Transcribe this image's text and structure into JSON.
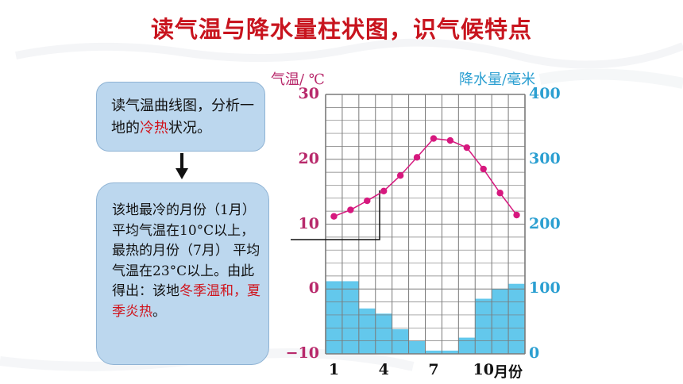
{
  "title": "读气温与降水量柱状图，识气候特点",
  "box1": {
    "pre": "读气温曲线图，分析一地的",
    "hl": "冷热",
    "post": "状况。"
  },
  "box2": {
    "pre": "该地最冷的月份（1月） 平均气温在10°C以上，最热的月份（7月） 平均气温在23°C以上。由此得出：该地",
    "hl": "冬季温和，夏季炎热",
    "post": "。"
  },
  "colors": {
    "temp": "#d6187e",
    "precip": "#63c8ec",
    "title": "#c8141e"
  },
  "chart_data": {
    "type": "bar+line",
    "left_axis_label": "气温/ ℃",
    "right_axis_label": "降水量/毫米",
    "x_unit_label": "月份",
    "x_tick_labels": [
      "1",
      "4",
      "7",
      "10"
    ],
    "left_ticks": [
      "30",
      "20",
      "10",
      "0",
      "−10"
    ],
    "right_ticks": [
      "400",
      "300",
      "200",
      "100",
      "0"
    ],
    "temp_range": [
      -10,
      30
    ],
    "precip_range": [
      0,
      400
    ],
    "months": [
      1,
      2,
      3,
      4,
      5,
      6,
      7,
      8,
      9,
      10,
      11,
      12
    ],
    "temperature_c": [
      11.2,
      12.2,
      13.6,
      15.1,
      17.5,
      20.3,
      23.2,
      22.9,
      21.8,
      18.5,
      14.8,
      11.4
    ],
    "precipitation_mm": [
      112,
      112,
      70,
      62,
      38,
      20,
      5,
      5,
      25,
      85,
      100,
      108
    ],
    "grid": true
  }
}
